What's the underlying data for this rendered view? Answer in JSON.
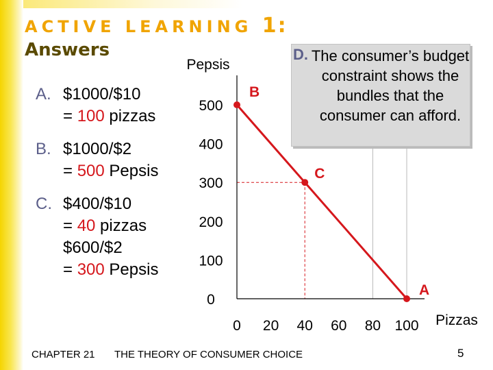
{
  "slide": {
    "title": "ACTIVE LEARNING",
    "title_number": "1:",
    "subtitle": "Answers"
  },
  "answers": {
    "a": {
      "letter": "A.",
      "line1": "$1000/$10",
      "line2_prefix": "= ",
      "line2_value": "100",
      "line2_suffix": " pizzas"
    },
    "b": {
      "letter": "B.",
      "line1": "$1000/$2",
      "line2_prefix": "= ",
      "line2_value": "500",
      "line2_suffix": " Pepsis"
    },
    "c": {
      "letter": "C.",
      "line1": "$400/$10",
      "line2_prefix": "= ",
      "line2_value": "40",
      "line2_suffix": " pizzas",
      "line3": "$600/$2",
      "line4_prefix": "= ",
      "line4_value": "300",
      "line4_suffix": " Pepsis"
    }
  },
  "box_d": {
    "letter": "D.",
    "text": "The consumer’s budget constraint shows the bundles that the consumer can afford."
  },
  "footer": {
    "chapter": "CHAPTER 21",
    "title": "THE THEORY OF CONSUMER CHOICE",
    "page": "5"
  },
  "colors": {
    "accent": "#d5171c",
    "title": "#f0a400",
    "letter": "#5c5f8a"
  },
  "chart_data": {
    "type": "line",
    "xlabel": "Pizzas",
    "ylabel": "Pepsis",
    "xlim": [
      0,
      100
    ],
    "ylim": [
      0,
      500
    ],
    "x_ticks": [
      0,
      20,
      40,
      60,
      80,
      100
    ],
    "y_ticks": [
      0,
      100,
      200,
      300,
      400,
      500
    ],
    "grid": false,
    "series": [
      {
        "values": [
          {
            "x": 0,
            "y": 500
          },
          {
            "x": 100,
            "y": 0
          }
        ]
      }
    ],
    "points": [
      {
        "label": "B",
        "x": 0,
        "y": 500
      },
      {
        "label": "C",
        "x": 40,
        "y": 300
      },
      {
        "label": "A",
        "x": 100,
        "y": 0
      }
    ],
    "guides": [
      {
        "x": 40,
        "y": 300
      }
    ]
  }
}
